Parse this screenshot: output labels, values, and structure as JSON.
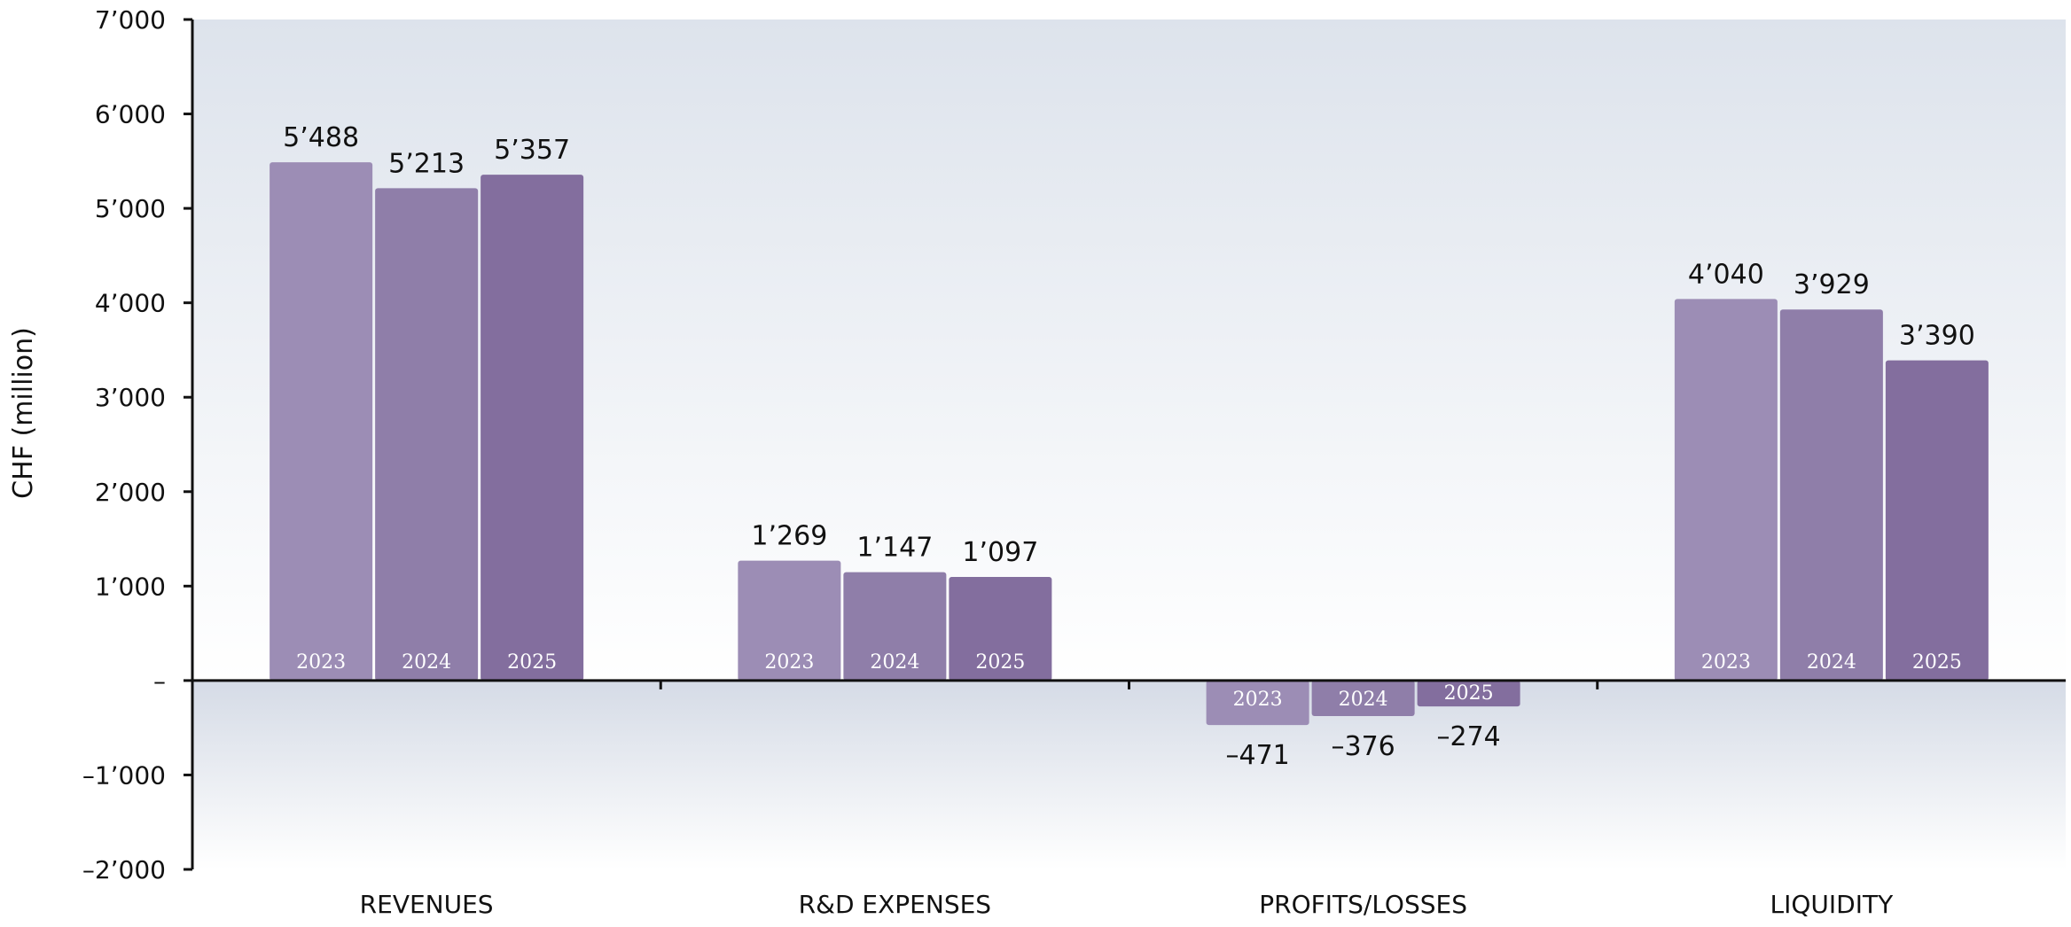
{
  "colors": {
    "bar_2023": "#9c8db5",
    "bar_2024": "#8f7ea9",
    "bar_2025": "#836e9e",
    "axis": "#111111",
    "background_top": "#dde3ec",
    "background_bottom": "#ffffff"
  },
  "chart_data": {
    "type": "bar",
    "ylabel": "CHF (million)",
    "ylim": [
      -2000,
      7000
    ],
    "yticks": [
      {
        "value": 7000,
        "label": "7’000"
      },
      {
        "value": 6000,
        "label": "6’000"
      },
      {
        "value": 5000,
        "label": "5’000"
      },
      {
        "value": 4000,
        "label": "4’000"
      },
      {
        "value": 3000,
        "label": "3’000"
      },
      {
        "value": 2000,
        "label": "2’000"
      },
      {
        "value": 1000,
        "label": "1’000"
      },
      {
        "value": 0,
        "label": "–"
      },
      {
        "value": -1000,
        "label": "–1’000"
      },
      {
        "value": -2000,
        "label": "–2’000"
      }
    ],
    "categories": [
      "REVENUES",
      "R&D EXPENSES",
      "PROFITS/LOSSES",
      "LIQUIDITY"
    ],
    "series": [
      {
        "name": "2023",
        "values": [
          5488,
          1269,
          -471,
          4040
        ],
        "labels": [
          "5’488",
          "1’269",
          "–471",
          "4’040"
        ]
      },
      {
        "name": "2024",
        "values": [
          5213,
          1147,
          -376,
          3929
        ],
        "labels": [
          "5’213",
          "1’147",
          "–376",
          "3’929"
        ]
      },
      {
        "name": "2025",
        "values": [
          5357,
          1097,
          -274,
          3390
        ],
        "labels": [
          "5’357",
          "1’097",
          "–274",
          "3’390"
        ]
      }
    ],
    "grid": false,
    "legend": "none"
  }
}
